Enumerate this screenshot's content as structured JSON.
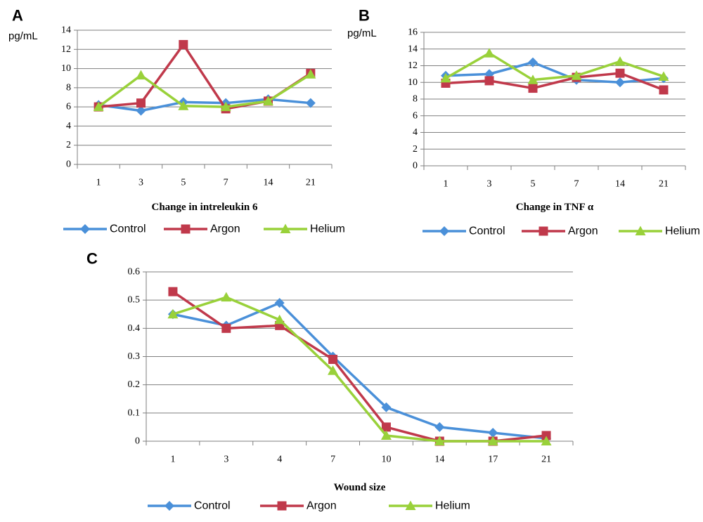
{
  "colors": {
    "Control": "#4a90d9",
    "Argon": "#c0394b",
    "Helium": "#99d13a"
  },
  "chart_data": [
    {
      "panel": "A",
      "type": "line",
      "title": "",
      "ylabel": "pg/mL",
      "xlabel": "Change in intreleukin 6",
      "categories": [
        "1",
        "3",
        "5",
        "7",
        "14",
        "21"
      ],
      "ylim": [
        0,
        14
      ],
      "yticks": [
        0,
        2,
        4,
        6,
        8,
        10,
        12,
        14
      ],
      "grid": true,
      "legend": "bottom",
      "series": [
        {
          "name": "Control",
          "marker": "diamond",
          "values": [
            6.2,
            5.6,
            6.5,
            6.4,
            6.8,
            6.4
          ]
        },
        {
          "name": "Argon",
          "marker": "square",
          "values": [
            6.0,
            6.4,
            12.5,
            5.8,
            6.6,
            9.5
          ]
        },
        {
          "name": "Helium",
          "marker": "triangle",
          "values": [
            6.0,
            9.3,
            6.1,
            6.0,
            6.6,
            9.4
          ]
        }
      ]
    },
    {
      "panel": "B",
      "type": "line",
      "title": "",
      "ylabel": "pg/mL",
      "xlabel": "Change in TNF α",
      "categories": [
        "1",
        "3",
        "5",
        "7",
        "14",
        "21"
      ],
      "ylim": [
        0,
        16
      ],
      "yticks": [
        0,
        2,
        4,
        6,
        8,
        10,
        12,
        14,
        16
      ],
      "grid": true,
      "legend": "bottom",
      "series": [
        {
          "name": "Control",
          "marker": "diamond",
          "values": [
            10.8,
            11.0,
            12.4,
            10.3,
            10.0,
            10.5
          ]
        },
        {
          "name": "Argon",
          "marker": "square",
          "values": [
            9.9,
            10.2,
            9.3,
            10.6,
            11.1,
            9.1
          ]
        },
        {
          "name": "Helium",
          "marker": "triangle",
          "values": [
            10.5,
            13.5,
            10.3,
            10.8,
            12.5,
            10.7
          ]
        }
      ]
    },
    {
      "panel": "C",
      "type": "line",
      "title": "",
      "ylabel": "",
      "xlabel": "Wound size",
      "categories": [
        "1",
        "3",
        "4",
        "7",
        "10",
        "14",
        "17",
        "21"
      ],
      "ylim": [
        0,
        0.6
      ],
      "yticks": [
        0,
        0.1,
        0.2,
        0.3,
        0.4,
        0.5,
        0.6
      ],
      "grid": true,
      "legend": "bottom",
      "series": [
        {
          "name": "Control",
          "marker": "diamond",
          "values": [
            0.45,
            0.41,
            0.49,
            0.3,
            0.12,
            0.05,
            0.03,
            0.01
          ]
        },
        {
          "name": "Argon",
          "marker": "square",
          "values": [
            0.53,
            0.4,
            0.41,
            0.29,
            0.05,
            0.0,
            0.0,
            0.02
          ]
        },
        {
          "name": "Helium",
          "marker": "triangle",
          "values": [
            0.45,
            0.51,
            0.43,
            0.25,
            0.02,
            0.0,
            0.0,
            0.0
          ]
        }
      ]
    }
  ]
}
